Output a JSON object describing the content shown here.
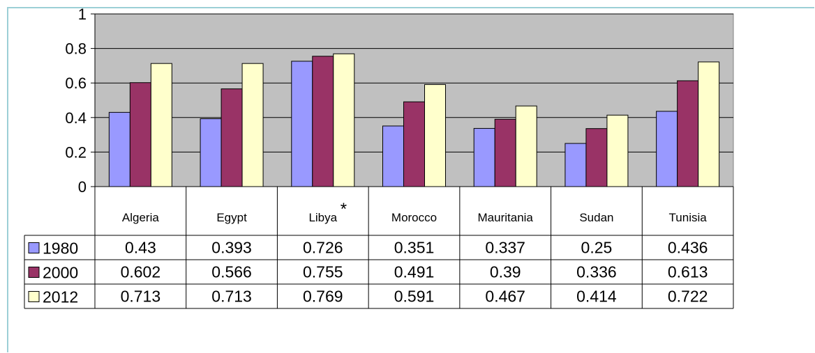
{
  "chart_data": {
    "type": "bar",
    "title": "",
    "xlabel": "",
    "ylabel": "",
    "ylim": [
      0,
      1
    ],
    "yticks": [
      "0",
      "0.2",
      "0.4",
      "0.6",
      "0.8",
      "1"
    ],
    "grid": true,
    "legend": "data-table",
    "categories": [
      "Algeria",
      "Egypt",
      "Libya",
      "Morocco",
      "Mauritania",
      "Sudan",
      "Tunisia"
    ],
    "category_note": {
      "index": 2,
      "mark": "*"
    },
    "series": [
      {
        "name": "1980",
        "color": "#9999ff",
        "values": [
          0.43,
          0.393,
          0.726,
          0.351,
          0.337,
          0.25,
          0.436
        ],
        "labels": [
          "0.43",
          "0.393",
          "0.726",
          "0.351",
          "0.337",
          "0.25",
          "0.436"
        ]
      },
      {
        "name": "2000",
        "color": "#993366",
        "values": [
          0.602,
          0.566,
          0.755,
          0.491,
          0.39,
          0.336,
          0.613
        ],
        "labels": [
          "0.602",
          "0.566",
          "0.755",
          "0.491",
          "0.39",
          "0.336",
          "0.613"
        ]
      },
      {
        "name": "2012",
        "color": "#ffffcc",
        "values": [
          0.713,
          0.713,
          0.769,
          0.591,
          0.467,
          0.414,
          0.722
        ],
        "labels": [
          "0.713",
          "0.713",
          "0.769",
          "0.591",
          "0.467",
          "0.414",
          "0.722"
        ]
      }
    ],
    "plot_background": "#c0c0c0"
  }
}
